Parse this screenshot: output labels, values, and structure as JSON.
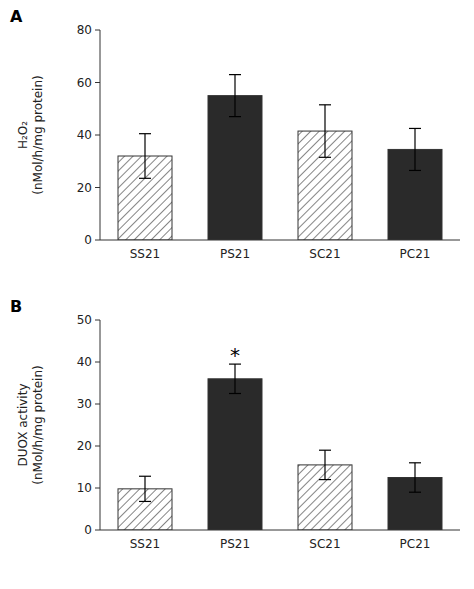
{
  "chart_data": [
    {
      "type": "bar",
      "title": "A",
      "categories": [
        "SS21",
        "PS21",
        "SC21",
        "PC21"
      ],
      "values": [
        32.0,
        55.0,
        41.5,
        34.5
      ],
      "errors": [
        8.5,
        8.0,
        10.0,
        8.0
      ],
      "colors": [
        "white",
        "#2a2a2a",
        "white",
        "#2a2a2a"
      ],
      "y_label": "H₂O₂\n(nMol/h/mg protein)",
      "ylim": [
        0,
        80
      ],
      "yticks": [
        0,
        20,
        40,
        60,
        80
      ],
      "grid": false
    },
    {
      "type": "bar",
      "title": "B",
      "categories": [
        "SS21",
        "PS21",
        "SC21",
        "PC21"
      ],
      "values": [
        9.8,
        36.0,
        15.5,
        12.5
      ],
      "errors": [
        3.0,
        3.5,
        3.5,
        3.5
      ],
      "colors": [
        "white",
        "#2a2a2a",
        "white",
        "#2a2a2a"
      ],
      "y_label": "DUOX activity\n(nMol/h/mg protein)",
      "ylim": [
        0,
        50
      ],
      "yticks": [
        0,
        10,
        20,
        30,
        40,
        50
      ],
      "grid": false,
      "annotations": [
        {
          "text": "*",
          "x": "PS21"
        }
      ]
    }
  ]
}
